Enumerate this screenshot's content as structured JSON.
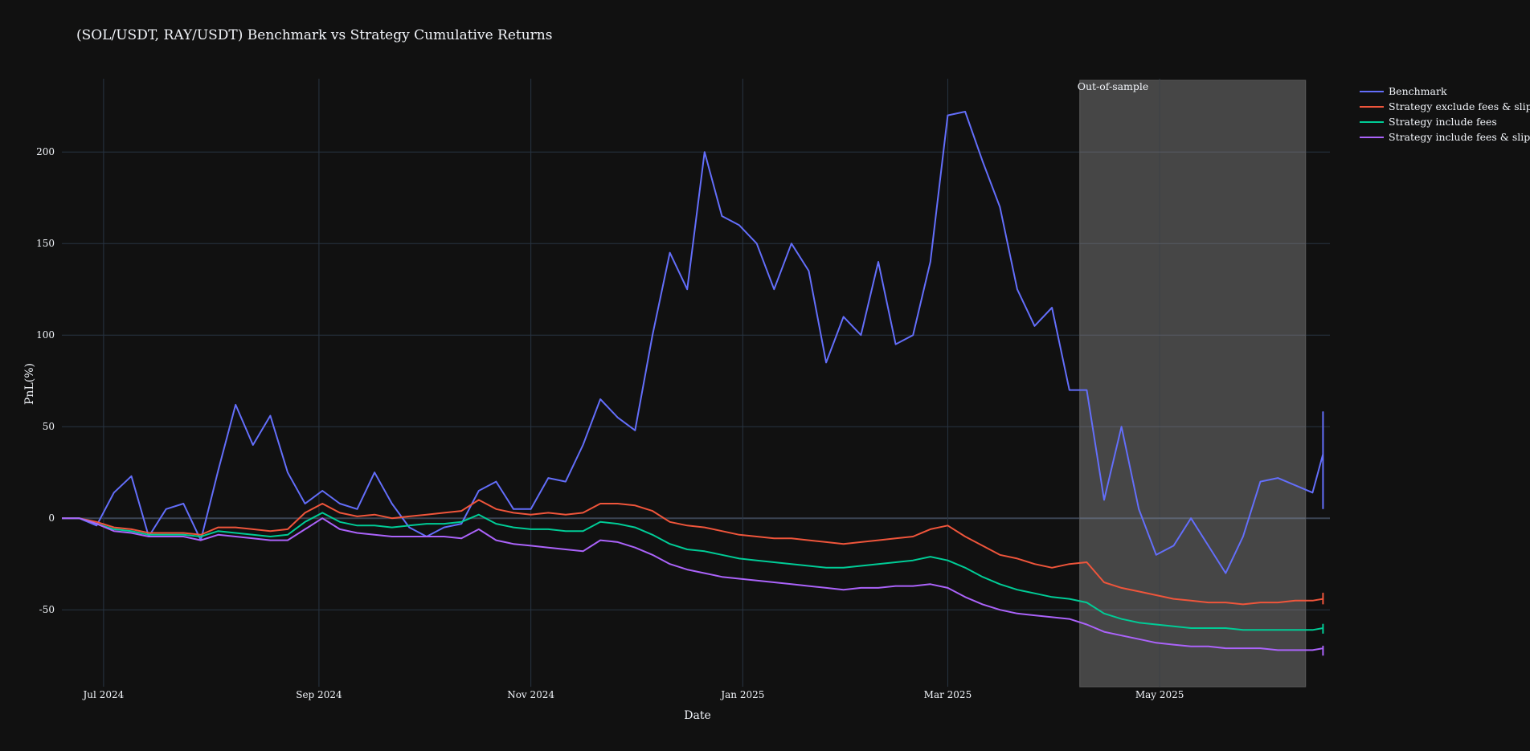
{
  "chart_data": {
    "type": "line",
    "title": "(SOL/USDT, RAY/USDT) Benchmark vs Strategy Cumulative Returns",
    "xlabel": "Date",
    "ylabel": "PnL(%)",
    "ylim": [
      -92,
      240
    ],
    "y_ticks": [
      -50,
      0,
      50,
      100,
      150,
      200
    ],
    "x_range_days": [
      0,
      365
    ],
    "x_ticks": [
      {
        "day": 12,
        "label": "Jul 2024"
      },
      {
        "day": 74,
        "label": "Sep 2024"
      },
      {
        "day": 135,
        "label": "Nov 2024"
      },
      {
        "day": 196,
        "label": "Jan 2025"
      },
      {
        "day": 255,
        "label": "Mar 2025"
      },
      {
        "day": 316,
        "label": "May 2025"
      }
    ],
    "start_date": "2024-06-19",
    "step_days": 5,
    "shaded_region": {
      "start_day": 293,
      "end_day": 358,
      "label": "Out-of-sample",
      "color": "#4a4a4a"
    },
    "legend_position": "top-right",
    "grid": true,
    "series": [
      {
        "name": "Benchmark",
        "color": "#636efa",
        "values": [
          0,
          0,
          -4,
          14,
          23,
          -10,
          5,
          8,
          -12,
          26,
          62,
          40,
          56,
          25,
          8,
          15,
          8,
          5,
          25,
          8,
          -5,
          -10,
          -5,
          -3,
          15,
          20,
          5,
          5,
          22,
          20,
          40,
          65,
          55,
          48,
          100,
          145,
          125,
          200,
          165,
          160,
          150,
          125,
          150,
          135,
          85,
          110,
          100,
          140,
          95,
          100,
          140,
          220,
          222,
          195,
          170,
          125,
          105,
          115,
          70,
          70,
          10,
          50,
          5,
          -20,
          -15,
          0,
          -15,
          -30,
          -10,
          20,
          22,
          18,
          14,
          35,
          58,
          45,
          50,
          55,
          25,
          10,
          25,
          10,
          5
        ]
      },
      {
        "name": "Strategy exclude fees & slippage",
        "color": "#ef553b",
        "values": [
          0,
          0,
          -2,
          -5,
          -6,
          -8,
          -8,
          -8,
          -9,
          -5,
          -5,
          -6,
          -7,
          -6,
          3,
          8,
          3,
          1,
          2,
          0,
          1,
          2,
          3,
          4,
          10,
          5,
          3,
          2,
          3,
          2,
          3,
          8,
          8,
          7,
          4,
          -2,
          -4,
          -5,
          -7,
          -9,
          -10,
          -11,
          -11,
          -12,
          -13,
          -14,
          -13,
          -12,
          -11,
          -10,
          -6,
          -4,
          -10,
          -15,
          -20,
          -22,
          -25,
          -27,
          -25,
          -24,
          -35,
          -38,
          -40,
          -42,
          -44,
          -45,
          -46,
          -46,
          -47,
          -46,
          -46,
          -45,
          -45,
          -44,
          -43,
          -42,
          -41,
          -41,
          -42,
          -42,
          -44,
          -45,
          -47
        ]
      },
      {
        "name": "Strategy include fees",
        "color": "#00cc96",
        "values": [
          0,
          0,
          -3,
          -6,
          -7,
          -9,
          -9,
          -9,
          -10,
          -7,
          -8,
          -9,
          -10,
          -9,
          -2,
          3,
          -2,
          -4,
          -4,
          -5,
          -4,
          -3,
          -3,
          -2,
          2,
          -3,
          -5,
          -6,
          -6,
          -7,
          -7,
          -2,
          -3,
          -5,
          -9,
          -14,
          -17,
          -18,
          -20,
          -22,
          -23,
          -24,
          -25,
          -26,
          -27,
          -27,
          -26,
          -25,
          -24,
          -23,
          -21,
          -23,
          -27,
          -32,
          -36,
          -39,
          -41,
          -43,
          -44,
          -46,
          -52,
          -55,
          -57,
          -58,
          -59,
          -60,
          -60,
          -60,
          -61,
          -61,
          -61,
          -61,
          -61,
          -60,
          -60,
          -59,
          -59,
          -58,
          -58,
          -59,
          -60,
          -62,
          -63
        ]
      },
      {
        "name": "Strategy include fees & slippage",
        "color": "#ab63fa",
        "values": [
          0,
          0,
          -3,
          -7,
          -8,
          -10,
          -10,
          -10,
          -12,
          -9,
          -10,
          -11,
          -12,
          -12,
          -6,
          0,
          -6,
          -8,
          -9,
          -10,
          -10,
          -10,
          -10,
          -11,
          -6,
          -12,
          -14,
          -15,
          -16,
          -17,
          -18,
          -12,
          -13,
          -16,
          -20,
          -25,
          -28,
          -30,
          -32,
          -33,
          -34,
          -35,
          -36,
          -37,
          -38,
          -39,
          -38,
          -38,
          -37,
          -37,
          -36,
          -38,
          -43,
          -47,
          -50,
          -52,
          -53,
          -54,
          -55,
          -58,
          -62,
          -64,
          -66,
          -68,
          -69,
          -70,
          -70,
          -71,
          -71,
          -71,
          -72,
          -72,
          -72,
          -71,
          -71,
          -71,
          -70,
          -70,
          -71,
          -72,
          -73,
          -74,
          -75
        ]
      }
    ]
  }
}
